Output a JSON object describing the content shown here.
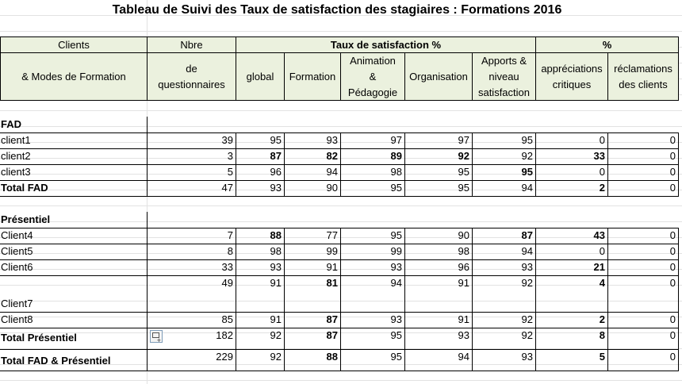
{
  "title": "Tableau de  Suivi des Taux de satisfaction des stagiaires :  Formations 2016",
  "header": {
    "clients_top": "Clients",
    "clients_bottom": "& Modes de Formation",
    "nbre_top": "Nbre",
    "nbre_bottom_1": "de",
    "nbre_bottom_2": "questionnaires",
    "taux": "Taux de satisfaction  %",
    "pct": "%",
    "global": "global",
    "formation": "Formation",
    "animation_1": "Animation",
    "animation_2": "&",
    "animation_3": "Pédagogie",
    "organisation": "Organisation",
    "apports_1": "Apports &",
    "apports_2": "niveau",
    "apports_3": "satisfaction",
    "appreciations_1": "appréciations",
    "appreciations_2": "critiques",
    "reclamations_1": "réclamations",
    "reclamations_2": "des clients"
  },
  "sections": {
    "fad": "FAD",
    "presentiel": "Présentiel"
  },
  "rows": {
    "client1": {
      "label": "client1",
      "n": "39",
      "global": "95",
      "formation": "93",
      "animation": "97",
      "organisation": "97",
      "apports": "95",
      "appreciations": "0",
      "reclamations": "0"
    },
    "client2": {
      "label": "client2",
      "n": "3",
      "global": "87",
      "formation": "82",
      "animation": "89",
      "organisation": "92",
      "apports": "92",
      "appreciations": "33",
      "reclamations": "0"
    },
    "client3": {
      "label": "client3",
      "n": "5",
      "global": "96",
      "formation": "94",
      "animation": "98",
      "organisation": "95",
      "apports": "95",
      "appreciations": "0",
      "reclamations": "0"
    },
    "total_fad": {
      "label": "Total  FAD",
      "n": "47",
      "global": "93",
      "formation": "90",
      "animation": "95",
      "organisation": "95",
      "apports": "94",
      "appreciations": "2",
      "reclamations": "0"
    },
    "client4": {
      "label": "Client4",
      "n": "7",
      "global": "88",
      "formation": "77",
      "animation": "95",
      "organisation": "90",
      "apports": "87",
      "appreciations": "43",
      "reclamations": "0"
    },
    "client5": {
      "label": "Client5",
      "n": "8",
      "global": "98",
      "formation": "99",
      "animation": "99",
      "organisation": "98",
      "apports": "94",
      "appreciations": "0",
      "reclamations": "0"
    },
    "client6": {
      "label": "Client6",
      "n": "33",
      "global": "93",
      "formation": "91",
      "animation": "93",
      "organisation": "96",
      "apports": "93",
      "appreciations": "21",
      "reclamations": "0"
    },
    "client7": {
      "label": "Client7",
      "n": "49",
      "global": "91",
      "formation": "81",
      "animation": "94",
      "organisation": "91",
      "apports": "92",
      "appreciations": "4",
      "reclamations": "0"
    },
    "client8": {
      "label": "Client8",
      "n": "85",
      "global": "91",
      "formation": "87",
      "animation": "93",
      "organisation": "91",
      "apports": "92",
      "appreciations": "2",
      "reclamations": "0"
    },
    "total_presentiel": {
      "label": "Total  Présentiel",
      "n": "182",
      "global": "92",
      "formation": "87",
      "animation": "95",
      "organisation": "93",
      "apports": "92",
      "appreciations": "8",
      "reclamations": "0"
    },
    "total_all": {
      "label": "Total FAD & Présentiel",
      "n": "229",
      "global": "92",
      "formation": "88",
      "animation": "95",
      "organisation": "94",
      "apports": "93",
      "appreciations": "5",
      "reclamations": "0"
    }
  },
  "colors": {
    "header_bg": "#ebf1de",
    "grid": "#e2e2e2",
    "border": "#000000"
  }
}
